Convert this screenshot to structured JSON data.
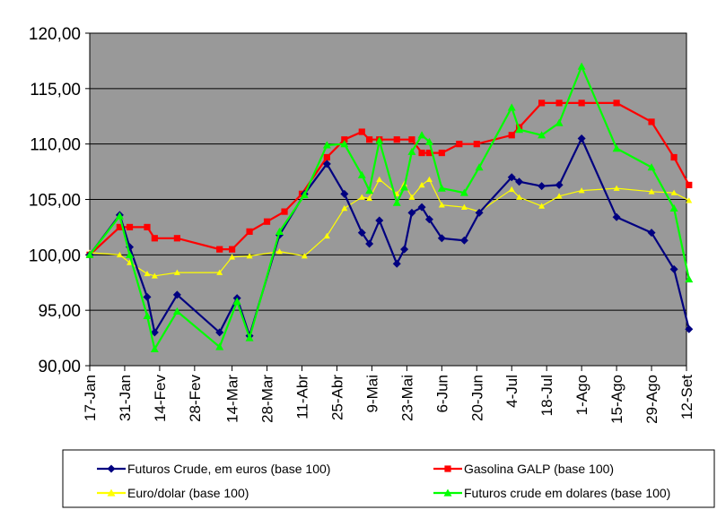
{
  "chart_data": {
    "type": "line",
    "title": "",
    "xlabel": "",
    "ylabel": "",
    "ylim": [
      90,
      120
    ],
    "yticks": [
      "90,00",
      "95,00",
      "100,00",
      "105,00",
      "110,00",
      "115,00",
      "120,00"
    ],
    "xticks": [
      "17-Jan",
      "31-Jan",
      "14-Fev",
      "28-Fev",
      "14-Mar",
      "28-Mar",
      "11-Abr",
      "25-Abr",
      "9-Mai",
      "23-Mai",
      "6-Jun",
      "20-Jun",
      "4-Jul",
      "18-Jul",
      "1-Ago",
      "15-Ago",
      "29-Ago",
      "12-Set"
    ],
    "grid": "horizontal",
    "plot_background": "#999999",
    "legend_position": "bottom",
    "series": [
      {
        "name": "Futuros Crude, em euros (base 100)",
        "color": "#000080",
        "marker": "diamond",
        "points": [
          [
            "17-Jan",
            100.0
          ],
          [
            "29-Jan",
            103.6
          ],
          [
            "2-Fev",
            100.7
          ],
          [
            "9-Fev",
            96.2
          ],
          [
            "12-Fev",
            93.0
          ],
          [
            "21-Fev",
            96.4
          ],
          [
            "9-Mar",
            93.0
          ],
          [
            "16-Mar",
            96.1
          ],
          [
            "21-Mar",
            92.7
          ],
          [
            "2-Abr",
            101.8
          ],
          [
            "12-Abr",
            105.5
          ],
          [
            "21-Abr",
            108.2
          ],
          [
            "28-Abr",
            105.5
          ],
          [
            "5-Mai",
            102.0
          ],
          [
            "8-Mai",
            101.0
          ],
          [
            "12-Mai",
            103.1
          ],
          [
            "19-Mai",
            99.2
          ],
          [
            "22-Mai",
            100.5
          ],
          [
            "25-Mai",
            103.8
          ],
          [
            "29-Mai",
            104.3
          ],
          [
            "1-Jun",
            103.2
          ],
          [
            "6-Jun",
            101.5
          ],
          [
            "15-Jun",
            101.3
          ],
          [
            "21-Jun",
            103.8
          ],
          [
            "4-Jul",
            107.0
          ],
          [
            "7-Jul",
            106.6
          ],
          [
            "16-Jul",
            106.2
          ],
          [
            "23-Jul",
            106.3
          ],
          [
            "1-Ago",
            110.5
          ],
          [
            "15-Ago",
            103.4
          ],
          [
            "29-Ago",
            102.0
          ],
          [
            "7-Set",
            98.7
          ],
          [
            "13-Set",
            93.3
          ]
        ]
      },
      {
        "name": "Gasolina GALP (base 100)",
        "color": "#ff0000",
        "marker": "square",
        "points": [
          [
            "17-Jan",
            100.0
          ],
          [
            "29-Jan",
            102.5
          ],
          [
            "2-Fev",
            102.5
          ],
          [
            "9-Fev",
            102.5
          ],
          [
            "12-Fev",
            101.5
          ],
          [
            "21-Fev",
            101.5
          ],
          [
            "9-Mar",
            100.5
          ],
          [
            "14-Mar",
            100.5
          ],
          [
            "21-Mar",
            102.1
          ],
          [
            "28-Mar",
            103.0
          ],
          [
            "4-Abr",
            103.9
          ],
          [
            "11-Abr",
            105.5
          ],
          [
            "21-Abr",
            108.8
          ],
          [
            "28-Abr",
            110.4
          ],
          [
            "5-Mai",
            111.1
          ],
          [
            "8-Mai",
            110.4
          ],
          [
            "12-Mai",
            110.4
          ],
          [
            "19-Mai",
            110.4
          ],
          [
            "25-Mai",
            110.4
          ],
          [
            "29-Mai",
            109.2
          ],
          [
            "1-Jun",
            109.2
          ],
          [
            "6-Jun",
            109.2
          ],
          [
            "13-Jun",
            110.0
          ],
          [
            "20-Jun",
            110.0
          ],
          [
            "4-Jul",
            110.8
          ],
          [
            "7-Jul",
            111.5
          ],
          [
            "16-Jul",
            113.7
          ],
          [
            "23-Jul",
            113.7
          ],
          [
            "1-Ago",
            113.7
          ],
          [
            "15-Ago",
            113.7
          ],
          [
            "29-Ago",
            112.0
          ],
          [
            "7-Set",
            108.8
          ],
          [
            "13-Set",
            106.3
          ]
        ]
      },
      {
        "name": "Euro/dolar (base 100)",
        "color": "#ffff00",
        "marker": "triangle",
        "points": [
          [
            "17-Jan",
            100.2
          ],
          [
            "29-Jan",
            100.0
          ],
          [
            "2-Fev",
            99.3
          ],
          [
            "9-Fev",
            98.3
          ],
          [
            "12-Fev",
            98.1
          ],
          [
            "21-Fev",
            98.4
          ],
          [
            "9-Mar",
            98.4
          ],
          [
            "14-Mar",
            99.8
          ],
          [
            "21-Mar",
            99.9
          ],
          [
            "2-Abr",
            100.3
          ],
          [
            "12-Abr",
            99.9
          ],
          [
            "21-Abr",
            101.7
          ],
          [
            "28-Abr",
            104.2
          ],
          [
            "5-Mai",
            105.2
          ],
          [
            "8-Mai",
            105.1
          ],
          [
            "12-Mai",
            106.8
          ],
          [
            "19-Mai",
            105.5
          ],
          [
            "22-Mai",
            106.4
          ],
          [
            "25-Mai",
            105.2
          ],
          [
            "29-Mai",
            106.3
          ],
          [
            "1-Jun",
            106.8
          ],
          [
            "6-Jun",
            104.5
          ],
          [
            "15-Jun",
            104.3
          ],
          [
            "21-Jun",
            103.9
          ],
          [
            "4-Jul",
            105.9
          ],
          [
            "7-Jul",
            105.2
          ],
          [
            "16-Jul",
            104.4
          ],
          [
            "23-Jul",
            105.3
          ],
          [
            "1-Ago",
            105.8
          ],
          [
            "15-Ago",
            106.0
          ],
          [
            "29-Ago",
            105.7
          ],
          [
            "7-Set",
            105.6
          ],
          [
            "13-Set",
            104.9
          ]
        ]
      },
      {
        "name": "Futuros crude em dolares (base 100)",
        "color": "#00ff00",
        "marker": "triangle",
        "points": [
          [
            "17-Jan",
            100.0
          ],
          [
            "29-Jan",
            103.5
          ],
          [
            "2-Fev",
            100.0
          ],
          [
            "9-Fev",
            94.5
          ],
          [
            "12-Fev",
            91.5
          ],
          [
            "21-Fev",
            94.9
          ],
          [
            "9-Mar",
            91.7
          ],
          [
            "16-Mar",
            95.8
          ],
          [
            "21-Mar",
            92.5
          ],
          [
            "2-Abr",
            102.1
          ],
          [
            "12-Abr",
            105.4
          ],
          [
            "21-Abr",
            109.9
          ],
          [
            "28-Abr",
            110.0
          ],
          [
            "5-Mai",
            107.2
          ],
          [
            "8-Mai",
            105.8
          ],
          [
            "12-Mai",
            110.3
          ],
          [
            "19-Mai",
            104.7
          ],
          [
            "22-Mai",
            106.1
          ],
          [
            "25-Mai",
            109.3
          ],
          [
            "29-Mai",
            110.8
          ],
          [
            "1-Jun",
            110.2
          ],
          [
            "6-Jun",
            106.0
          ],
          [
            "15-Jun",
            105.6
          ],
          [
            "21-Jun",
            107.9
          ],
          [
            "4-Jul",
            113.3
          ],
          [
            "7-Jul",
            111.3
          ],
          [
            "16-Jul",
            110.8
          ],
          [
            "23-Jul",
            111.9
          ],
          [
            "1-Ago",
            117.0
          ],
          [
            "15-Ago",
            109.6
          ],
          [
            "29-Ago",
            107.9
          ],
          [
            "7-Set",
            104.2
          ],
          [
            "13-Set",
            97.8
          ]
        ]
      }
    ]
  }
}
